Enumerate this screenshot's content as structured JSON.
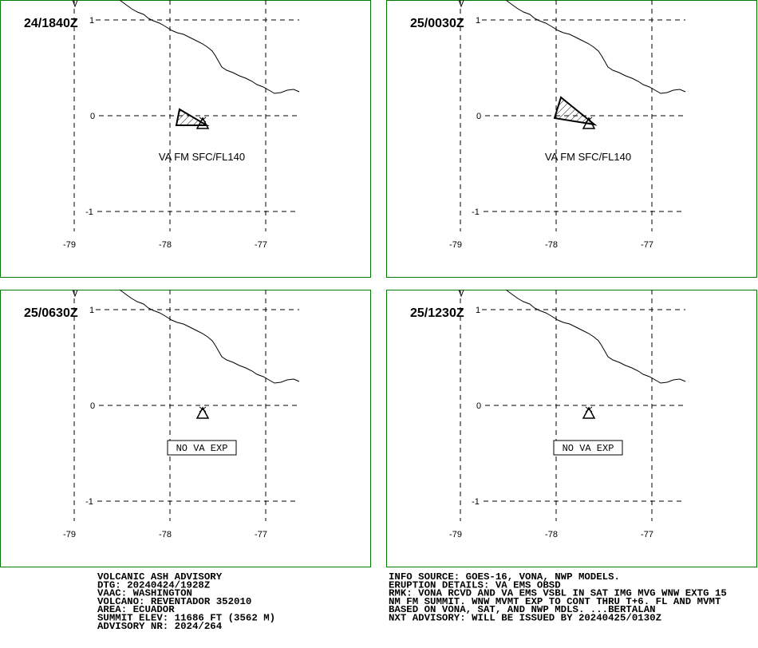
{
  "panels": [
    {
      "time": "24/1840Z",
      "lat_labels": [
        "1",
        "0",
        "-1"
      ],
      "lon_labels": [
        "-79",
        "-78",
        "-77"
      ],
      "ash_label": "VA FM SFC/FL140"
    },
    {
      "time": "25/0030Z",
      "lat_labels": [
        "1",
        "0",
        "-1"
      ],
      "lon_labels": [
        "-79",
        "-78",
        "-77"
      ],
      "ash_label": "VA FM SFC/FL140"
    },
    {
      "time": "25/0630Z",
      "lat_labels": [
        "1",
        "0",
        "-1"
      ],
      "lon_labels": [
        "-79",
        "-78",
        "-77"
      ],
      "notice": "NO VA EXP"
    },
    {
      "time": "25/1230Z",
      "lat_labels": [
        "1",
        "0",
        "-1"
      ],
      "lon_labels": [
        "-79",
        "-78",
        "-77"
      ],
      "notice": "NO VA EXP"
    }
  ],
  "advisory_left": [
    "VOLCANIC ASH ADVISORY",
    "DTG: 20240424/1928Z",
    "VAAC: WASHINGTON",
    "VOLCANO: REVENTADOR 352010",
    "AREA: ECUADOR",
    "SUMMIT ELEV: 11686 FT (3562 M)",
    "ADVISORY NR: 2024/264"
  ],
  "advisory_right": [
    "INFO SOURCE: GOES-16, VONA, NWP MODELS.",
    "ERUPTION DETAILS: VA EMS OBSD",
    "RMK: VONA RCVD AND VA EMS VSBL IN SAT IMG MVG WNW EXTG 15",
    "NM FM SUMMIT. WNW MVMT EXP TO CONT THRU T+6. FL AND MVMT",
    "BASED ON VONA, SAT, AND NWP MDLS. ...BERTALAN",
    "NXT ADVISORY: WILL BE ISSUED BY 20240425/0130Z"
  ]
}
